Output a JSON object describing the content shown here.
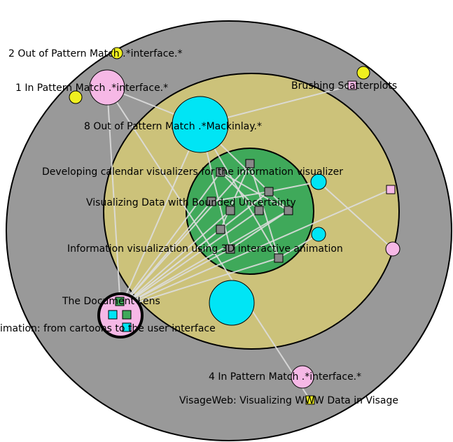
{
  "labels": [
    "2 Out of Pattern Match .*interface.*",
    "1 In Pattern Match .*interface.*",
    "Brushing Scatterplots",
    "8 Out of Pattern Match .*Mackinlay.*",
    "Developing calendar visualizers for the information visualizer",
    "Visualizing Data with Bounded Uncertainty",
    "Information visualization using 3D interactive animation",
    "The Document Lens",
    "imation: from cartoons to the user interface",
    "4 In Pattern Match .*interface.*",
    "VisageWeb: Visualizing WWW Data in Visage"
  ]
}
